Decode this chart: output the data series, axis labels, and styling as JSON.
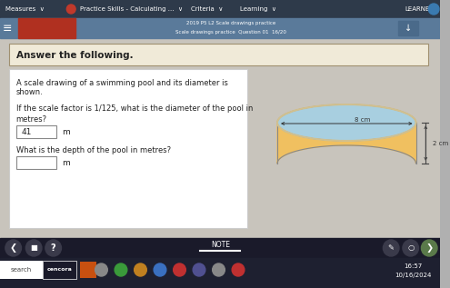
{
  "bg_color": "#b0b0b0",
  "top_bar_color": "#2e3a4a",
  "top_bar_text": "Measures  ∨",
  "top_bar_text2": "Practice Skills - Calculating ...  ∨",
  "top_bar_text3": "Criteria  ∨",
  "top_bar_text4": "Learning  ∨",
  "learner_text": "LEARNER",
  "subtitle_bg": "#5a7a9a",
  "subtitle_text_line1": "2019 P5 L2 Scale drawings practice",
  "subtitle_text_line2": "Scale drawings practice  Question 01  16/20",
  "red_bar_color": "#b03020",
  "answer_box_bg": "#f0ead8",
  "answer_box_text": "Answer the following.",
  "content_bg": "#c8c4bc",
  "question_box_bg": "#ffffff",
  "question_text_line1": "A scale drawing of a swimming pool and its diameter is",
  "question_text_line2": "shown.",
  "scale_question": "If the scale factor is 1/125, what is the diameter of the pool in",
  "scale_question2": "metres?",
  "answer1_value": "41",
  "answer1_unit": "m",
  "depth_question": "What is the depth of the pool in metres?",
  "answer2_unit": "m",
  "pool_top_color": "#a8cfe0",
  "pool_side_color": "#f0c060",
  "pool_outline_color": "#888888",
  "pool_top_edge_color": "#d0c090",
  "pool_diameter_label": "8 cm",
  "pool_depth_label": "2 cm",
  "bottom_nav_color": "#1a1a2a",
  "bottom_text": "NOTE",
  "taskbar_color": "#1e2030",
  "time_text": "16:57",
  "date_text": "10/16/2024",
  "search_text": "search",
  "cencora_text": "cencora",
  "menu_lines": 3
}
